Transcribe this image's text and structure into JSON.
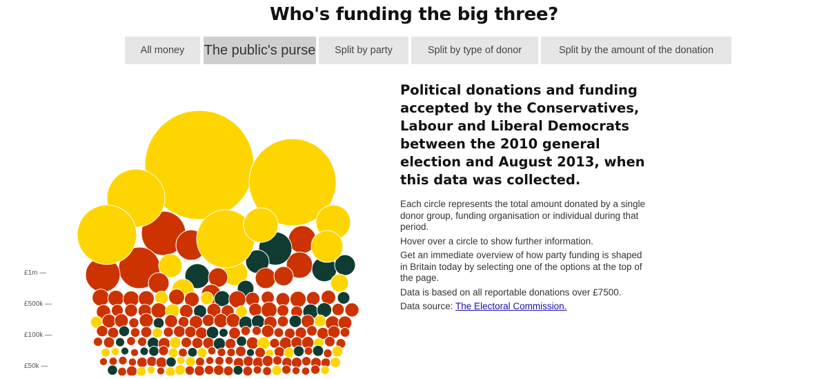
{
  "header": {
    "title": "Who's funding the big three?"
  },
  "tabs": [
    {
      "label": "All money",
      "active": false
    },
    {
      "label": "The public's purse",
      "active": true
    },
    {
      "label": "Split by party",
      "active": false
    },
    {
      "label": "Split by type of donor",
      "active": false
    },
    {
      "label": "Split by the amount of the donation",
      "active": false
    }
  ],
  "info": {
    "heading": "Political donations and funding accepted by the Conservatives, Labour and Liberal Democrats between the 2010 general election and August 2013, when this data was collected.",
    "p1": "Each circle represents the total amount donated by a single donor group, funding organisation or individual during that period.",
    "p2": "Hover over a circle to show further information.",
    "p3": "Get an immediate overview of how party funding is shaped in Britain today by selecting one of the options at the top of the page.",
    "p4": "Data is based on all reportable donations over £7500.",
    "source_label": "Data source: ",
    "source_link": "The Electoral Commission."
  },
  "colors": {
    "yellow": "#ffd500",
    "red": "#cc3300",
    "green": "#0f3b33"
  },
  "chart_data": {
    "type": "bubble",
    "axis_ticks": [
      {
        "label": "£1m —",
        "value": 1000000
      },
      {
        "label": "£500k —",
        "value": 500000
      },
      {
        "label": "£100k —",
        "value": 100000
      },
      {
        "label": "£50k —",
        "value": 50000
      }
    ]
  }
}
